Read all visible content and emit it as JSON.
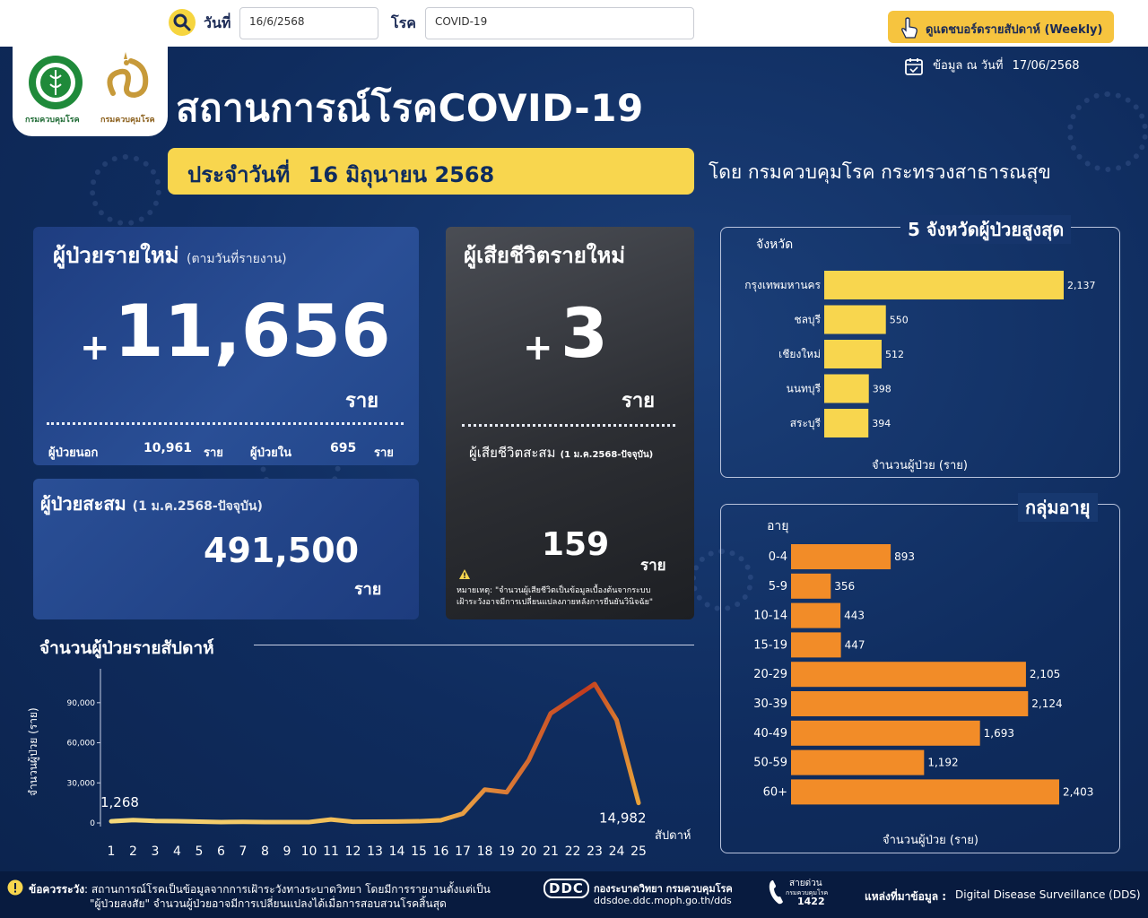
{
  "filters": {
    "date_label": "วันที่",
    "date_value": "16/6/2568",
    "disease_label": "โรค",
    "disease_value": "COVID-19",
    "weekly_button": "ดูแดชบอร์ดรายสัปดาห์ (Weekly)"
  },
  "header": {
    "logo_left_caption": "กรมควบคุมโรค",
    "logo_right_caption": "กรมควบคุมโรค",
    "title": "สถานการณ์โรคCOVID-19",
    "asof_label": "ข้อมูล ณ วันที่",
    "asof_date": "17/06/2568",
    "daily_label": "ประจำวันที่",
    "daily_date": "16 มิถุนายน 2568",
    "byline": "โดย กรมควบคุมโรค  กระทรวงสาธารณสุข"
  },
  "new_cases": {
    "title": "ผู้ป่วยรายใหม่",
    "subtitle": "(ตามวันที่รายงาน)",
    "plus": "+",
    "value": "11,656",
    "unit": "ราย",
    "outpatient_label": "ผู้ป่วยนอก",
    "outpatient_value": "10,961",
    "outpatient_unit": "ราย",
    "inpatient_label": "ผู้ป่วยใน",
    "inpatient_value": "695",
    "inpatient_unit": "ราย"
  },
  "cumulative": {
    "title": "ผู้ป่วยสะสม",
    "subtitle": "(1 ม.ค.2568-ปัจจุบัน)",
    "value": "491,500",
    "unit": "ราย"
  },
  "deaths": {
    "title": "ผู้เสียชีวิตรายใหม่",
    "plus": "+",
    "value": "3",
    "unit": "ราย",
    "cum_label": "ผู้เสียชีวิตสะสม",
    "cum_sub": "(1 ม.ค.2568-ปัจจุบัน)",
    "cum_value": "159",
    "cum_unit": "ราย",
    "note_line1": "หมายเหตุ:   \"จำนวนผู้เสียชีวิตเป็นข้อมูลเบื้องต้นจากระบบ",
    "note_line2": "เฝ้าระวังอาจมีการเปลี่ยนแปลงภายหลังการยืนยันวินิจฉัย\""
  },
  "colors": {
    "navy": "#0f2c5e",
    "yellow_bar": "#f8d64e",
    "orange_bar": "#f28c28",
    "line_start": "#f5d97a",
    "line_peak": "#c23b1e"
  },
  "chart_data": [
    {
      "type": "bar",
      "title": "5  จังหวัดผู้ป่วยสูงสุด",
      "ylabel": "จังหวัด",
      "xlabel": "จำนวนผู้ป่วย (ราย)",
      "categories": [
        "กรุงเทพมหานคร",
        "ชลบุรี",
        "เชียงใหม่",
        "นนทบุรี",
        "สระบุรี"
      ],
      "values": [
        2137,
        550,
        512,
        398,
        394
      ],
      "labels": [
        "2,137",
        "550",
        "512",
        "398",
        "394"
      ],
      "xlim": [
        0,
        2137
      ]
    },
    {
      "type": "bar",
      "title": "กลุ่มอายุ",
      "ylabel": "อายุ",
      "xlabel": "จำนวนผู้ป่วย (ราย)",
      "categories": [
        "0-4",
        "5-9",
        "10-14",
        "15-19",
        "20-29",
        "30-39",
        "40-49",
        "50-59",
        "60+"
      ],
      "values": [
        893,
        356,
        443,
        447,
        2105,
        2124,
        1693,
        1192,
        2403
      ],
      "labels": [
        "893",
        "356",
        "443",
        "447",
        "2,105",
        "2,124",
        "1,693",
        "1,192",
        "2,403"
      ],
      "xlim": [
        0,
        2403
      ]
    },
    {
      "type": "line",
      "title": "จำนวนผู้ป่วยรายสัปดาห์",
      "xlabel": "สัปดาห์",
      "ylabel": "จำนวนผู้ป่วย (ราย)",
      "x": [
        1,
        2,
        3,
        4,
        5,
        6,
        7,
        8,
        9,
        10,
        11,
        12,
        13,
        14,
        15,
        16,
        17,
        18,
        19,
        20,
        21,
        22,
        23,
        24,
        25
      ],
      "values": [
        1268,
        2200,
        1500,
        1300,
        1000,
        700,
        800,
        700,
        650,
        700,
        2600,
        900,
        1000,
        1100,
        1300,
        2000,
        7000,
        25000,
        23000,
        47000,
        82000,
        93000,
        104000,
        77000,
        14982
      ],
      "yticks": [
        0,
        30000,
        60000,
        90000
      ],
      "ytick_labels": [
        "0",
        "30,000",
        "60,000",
        "90,000"
      ],
      "ylim": [
        0,
        110000
      ],
      "annotations": {
        "first": "1,268",
        "last": "14,982"
      }
    }
  ],
  "footer": {
    "warning_label": "ข้อควรระวัง",
    "warning_line1": ": สถานการณ์โรคเป็นข้อมูลจากการเฝ้าระวังทางระบาดวิทยา โดยมีการรายงานตั้งแต่เป็น",
    "warning_line2": "\"ผู้ป่วยสงสัย\" จำนวนผู้ป่วยอาจมีการเปลี่ยนแปลงได้เมื่อการสอบสวนโรคสิ้นสุด",
    "ddc_logo": "DDC",
    "ddc_name": "กองระบาดวิทยา กรมควบคุมโรค",
    "ddc_url": "ddsdoe.ddc.moph.go.th/dds",
    "hotline_label": "สายด่วน",
    "hotline_sub": "กรมควบคุมโรค",
    "hotline_number": "1422",
    "source_label": "แหล่งที่มาข้อมูล :",
    "source_value": "Digital Disease Surveillance (DDS)"
  }
}
